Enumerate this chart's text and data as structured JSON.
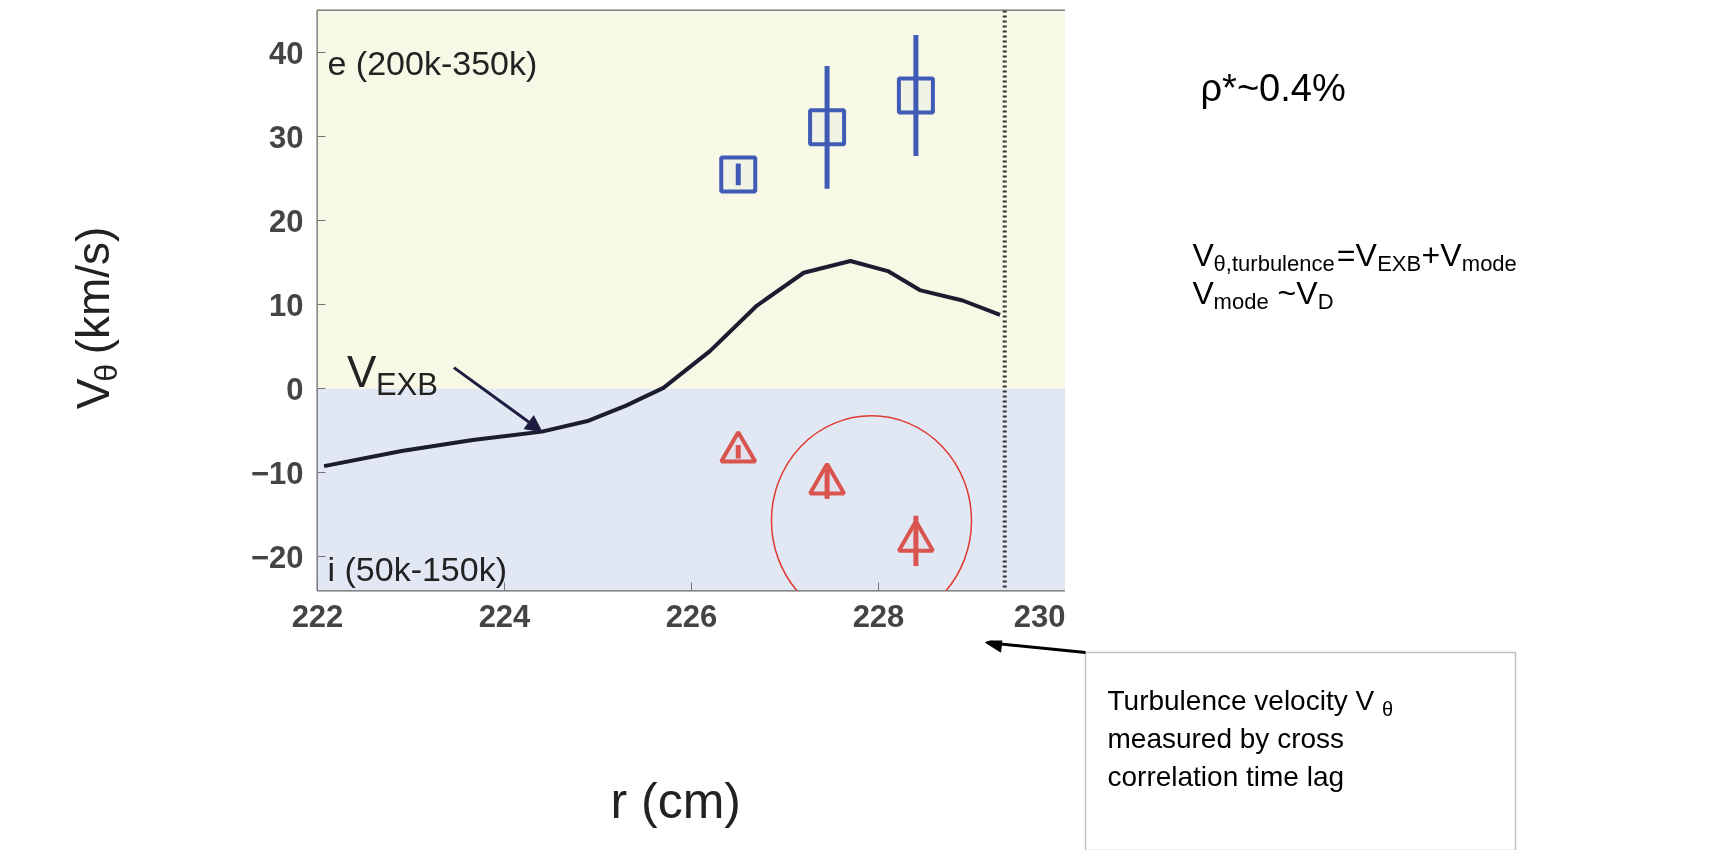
{
  "chart_data": {
    "type": "scatter",
    "xlabel": "r (cm)",
    "ylabel": "V$_{θ}$ (km/s)",
    "xlim": [
      222,
      230
    ],
    "ylim": [
      -24,
      45
    ],
    "xticks": [
      222,
      224,
      226,
      228,
      230
    ],
    "yticks": [
      -20,
      -10,
      0,
      10,
      20,
      30,
      40
    ],
    "grid": false,
    "series": [
      {
        "type": "line",
        "color": "#1c1c30",
        "x": [
          222.07,
          222.9,
          223.66,
          224.4,
          224.9,
          225.3,
          225.7,
          226.2,
          226.7,
          227.2,
          227.7,
          228.1,
          228.45,
          228.9,
          229.3
        ],
        "values": [
          -9.2,
          -7.4,
          -6.1,
          -5.1,
          -3.8,
          -2.0,
          0.1,
          4.5,
          9.9,
          13.8,
          15.2,
          14.0,
          11.7,
          10.5,
          8.8
        ]
      },
      {
        "marker": "square",
        "color": "#3f5bb5",
        "x": [
          226.5,
          227.45,
          228.4
        ],
        "values": [
          25.5,
          31.1,
          34.9
        ],
        "errors": [
          1.3,
          7.3,
          7.2
        ]
      },
      {
        "marker": "triangle",
        "color": "#d9534f",
        "x": [
          226.5,
          227.45,
          228.4
        ],
        "values": [
          -7.5,
          -11.3,
          -18.1
        ],
        "errors": [
          0.8,
          1.8,
          3
        ]
      }
    ],
    "ref_lines": [
      {
        "axis": "x",
        "value": 229.35,
        "color": "#333333",
        "line_style": "dotted"
      }
    ],
    "bands": [
      {
        "axis": "y",
        "from": 0,
        "to": 45,
        "label": "e (200k-350k)",
        "color": "#f8f8e6"
      },
      {
        "axis": "y",
        "from": -24,
        "to": 0,
        "label": "i (50k-150k)",
        "color": "#e1e8f4"
      }
    ],
    "annotations": [
      {
        "text": "V$_{EXB}$",
        "x": 224.4,
        "y": -5.1
      },
      "ρ*~0.4%",
      "V$_{θ,turbulence}$=V$_{EXB}$+V$_{mode}$",
      "V$_{mode}$ ~V$_{D}$",
      "Turbulence velocity V$_{θ}$ measured by cross correlation time lag"
    ]
  }
}
